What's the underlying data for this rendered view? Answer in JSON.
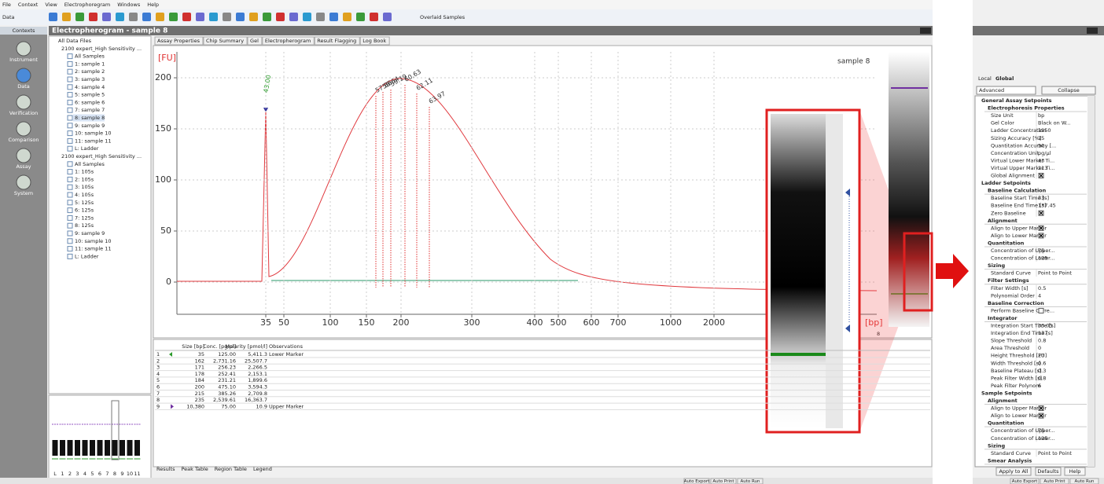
{
  "menu": [
    "File",
    "Context",
    "View",
    "Electrophoregram",
    "Windows",
    "Help"
  ],
  "toolbar": {
    "context_label": "Data",
    "overlay": "Overlaid Samples"
  },
  "contexts": {
    "title": "Contexts",
    "items": [
      "Instrument",
      "Data",
      "Verification",
      "Comparison",
      "Assay",
      "System"
    ]
  },
  "window_title": "Electropherogram - sample 8",
  "tree": {
    "root": "All Data Files",
    "files": [
      {
        "name": "2100 expert_High Sensitivity ...",
        "items": [
          "All Samples",
          "1: sample 1",
          "2: sample 2",
          "3: sample 3",
          "4: sample 4",
          "5: sample 5",
          "6: sample 6",
          "7: sample 7",
          "8: sample 8",
          "9: sample 9",
          "10: sample 10",
          "11: sample 11",
          "L: Ladder"
        ]
      },
      {
        "name": "2100 expert_High Sensitivity ...",
        "items": [
          "All Samples",
          "1: 105s",
          "2: 105s",
          "3: 105s",
          "4: 105s",
          "5: 125s",
          "6: 125s",
          "7: 125s",
          "8: 125s",
          "9: sample 9",
          "10: sample 10",
          "11: sample 11",
          "L: Ladder"
        ]
      }
    ]
  },
  "tabs": [
    "Assay Properties",
    "Chip Summary",
    "Gel",
    "Electropherogram",
    "Result Flagging",
    "Log Book"
  ],
  "plot": {
    "y_unit": "[FU]",
    "x_unit": "[bp]",
    "sample": "sample 8",
    "yticks": [
      0,
      50,
      100,
      150,
      200
    ],
    "xticks": [
      35,
      50,
      100,
      150,
      200,
      300,
      400,
      500,
      600,
      700,
      1000,
      2000
    ],
    "peaks": [
      "43.00",
      "57.88",
      "58.64",
      "59.19",
      "60.63",
      "62.11",
      "63.97"
    ],
    "lane_label": "8"
  },
  "table": {
    "columns": [
      "Size [bp]",
      "Conc. [pg/µl]",
      "Molarity [pmol/l]",
      "Observations"
    ],
    "rows": [
      [
        "1",
        "35",
        "125.00",
        "5,411.3",
        "Lower Marker"
      ],
      [
        "2",
        "162",
        "2,731.16",
        "25,507.7"
      ],
      [
        "3",
        "171",
        "256.23",
        "2,266.5"
      ],
      [
        "4",
        "178",
        "252.41",
        "2,153.1"
      ],
      [
        "5",
        "184",
        "231.21",
        "1,899.6"
      ],
      [
        "6",
        "200",
        "475.10",
        "3,594.3"
      ],
      [
        "7",
        "215",
        "385.26",
        "2,709.8"
      ],
      [
        "8",
        "235",
        "2,539.61",
        "16,363.7"
      ],
      [
        "9",
        "10,380",
        "75.00",
        "10.9",
        "Upper Marker"
      ]
    ]
  },
  "bottom_tabs": [
    "Results",
    "Peak Table",
    "Region Table",
    "Legend"
  ],
  "gel_lanes": [
    "L",
    "1",
    "2",
    "3",
    "4",
    "5",
    "6",
    "7",
    "8",
    "9",
    "10",
    "11"
  ],
  "status_buttons": [
    "Auto Export",
    "Auto Print",
    "Auto Run"
  ],
  "setpoints": {
    "tabs": [
      "Local",
      "Global"
    ],
    "mode": "Advanced",
    "collapse": "Collapse",
    "rows": [
      {
        "section": "General Assay Setpoints"
      },
      {
        "group": "Electrophoresis Properties"
      },
      {
        "label": "Size Unit",
        "value": "bp"
      },
      {
        "label": "Gel Color",
        "value": "Black on W..."
      },
      {
        "label": "Ladder Concentration",
        "value": "1950"
      },
      {
        "label": "Sizing Accuracy [%]",
        "value": "15"
      },
      {
        "label": "Quantitation Accuracy [...",
        "value": "50"
      },
      {
        "label": "Concentration Unit",
        "value": "pg/µl"
      },
      {
        "label": "Virtual Lower Marker Ti...",
        "value": "43"
      },
      {
        "label": "Virtual Upper Marker Ti...",
        "value": "113"
      },
      {
        "label": "Global Alignment",
        "checked": true
      },
      {
        "section": "Ladder Setpoints"
      },
      {
        "group": "Baseline Calculation"
      },
      {
        "label": "Baseline Start Time [s]",
        "value": "33"
      },
      {
        "label": "Baseline End Time [s]",
        "value": "137.45"
      },
      {
        "label": "Zero Baseline",
        "checked": true
      },
      {
        "group": "Alignment"
      },
      {
        "label": "Align to Upper Marker",
        "checked": true
      },
      {
        "label": "Align to Lower Marker",
        "checked": true
      },
      {
        "group": "Quantitation"
      },
      {
        "label": "Concentration of Upper...",
        "value": "75"
      },
      {
        "label": "Concentration of Lower...",
        "value": "125"
      },
      {
        "group": "Sizing"
      },
      {
        "label": "Standard Curve",
        "value": "Point to Point"
      },
      {
        "group": "Filter Settings"
      },
      {
        "label": "Filter Width [s]",
        "value": "0.5"
      },
      {
        "label": "Polynomial Order",
        "value": "4"
      },
      {
        "group": "Baseline Correction"
      },
      {
        "label": "Perform Baseline Corre...",
        "checked": false
      },
      {
        "group": "Integrator"
      },
      {
        "label": "Integration Start Time [s]",
        "value": "33.05"
      },
      {
        "label": "Integration End Time [s]",
        "value": "137"
      },
      {
        "label": "Slope Threshold",
        "value": "0.8"
      },
      {
        "label": "Area Threshold",
        "value": "0"
      },
      {
        "label": "Height Threshold [FU]",
        "value": "20"
      },
      {
        "label": "Width Threshold [s]",
        "value": "0.6"
      },
      {
        "label": "Baseline Plateau [s]",
        "value": "0.3"
      },
      {
        "label": "Peak Filter Width [s]",
        "value": "0.8"
      },
      {
        "label": "Peak Filter Polynom",
        "value": "6"
      },
      {
        "section": "Sample Setpoints"
      },
      {
        "group": "Alignment"
      },
      {
        "label": "Align to Upper Marker",
        "checked": true
      },
      {
        "label": "Align to Lower Marker",
        "checked": true
      },
      {
        "group": "Quantitation"
      },
      {
        "label": "Concentration of Upper...",
        "value": "75"
      },
      {
        "label": "Concentration of Lower...",
        "value": "125"
      },
      {
        "group": "Sizing"
      },
      {
        "label": "Standard Curve",
        "value": "Point to Point"
      },
      {
        "group": "Smear Analysis"
      }
    ],
    "buttons": [
      "Apply to All",
      "Defaults",
      "Help"
    ],
    "status_buttons": [
      "Auto Export",
      "Auto Print",
      "Auto Run"
    ]
  }
}
